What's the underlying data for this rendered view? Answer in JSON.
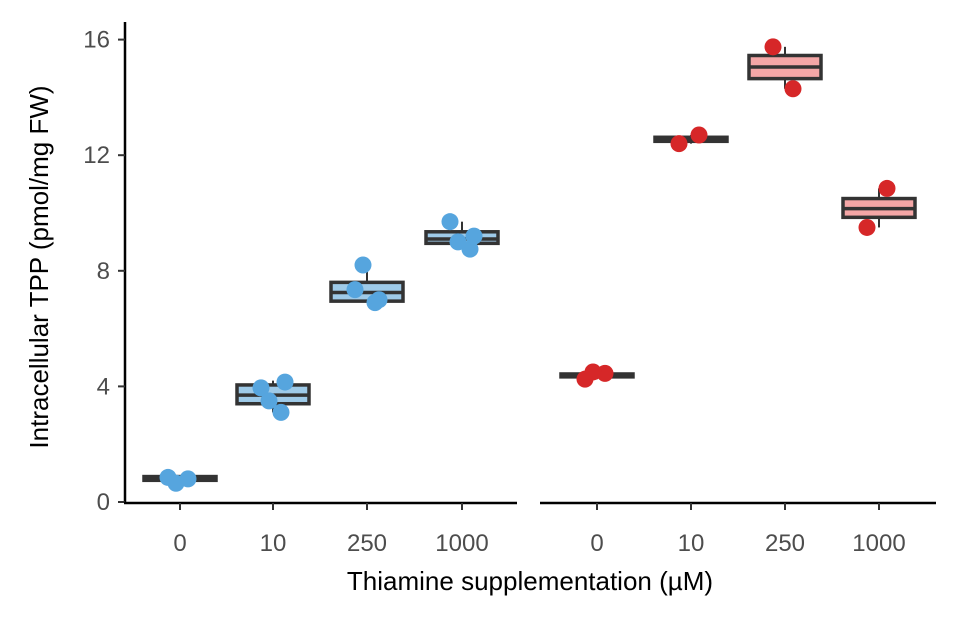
{
  "chart_data": {
    "type": "box",
    "xlabel": "Thiamine supplementation (µM)",
    "ylabel": "Intracellular TPP (pmol/mg FW)",
    "ylim": [
      0,
      16.5
    ],
    "yticks": [
      "0",
      "4",
      "8",
      "12",
      "16"
    ],
    "grid": false,
    "legend": "none",
    "panels": [
      {
        "categories": [
          "0",
          "10",
          "250",
          "1000"
        ],
        "point_color": "#56A5DE",
        "box_fill": "#9ECAE8",
        "series": [
          {
            "category": "0",
            "q1": 0.75,
            "median": 0.82,
            "q3": 0.88,
            "whisker_low": 0.65,
            "whisker_high": 0.92,
            "points": [
              0.85,
              0.8,
              0.65
            ]
          },
          {
            "category": "10",
            "q1": 3.4,
            "median": 3.7,
            "q3": 4.05,
            "whisker_low": 3.1,
            "whisker_high": 4.2,
            "points": [
              3.95,
              3.1,
              3.5,
              4.15
            ]
          },
          {
            "category": "250",
            "q1": 6.95,
            "median": 7.25,
            "q3": 7.6,
            "whisker_low": 6.9,
            "whisker_high": 8.2,
            "points": [
              7.35,
              6.9,
              8.2,
              7.0
            ]
          },
          {
            "category": "1000",
            "q1": 8.95,
            "median": 9.1,
            "q3": 9.35,
            "whisker_low": 8.75,
            "whisker_high": 9.7,
            "points": [
              9.7,
              8.75,
              9.0,
              9.2
            ]
          }
        ]
      },
      {
        "categories": [
          "0",
          "10",
          "250",
          "1000"
        ],
        "point_color": "#D62728",
        "box_fill": "#F4A6A6",
        "series": [
          {
            "category": "0",
            "q1": 4.33,
            "median": 4.38,
            "q3": 4.43,
            "whisker_low": 4.25,
            "whisker_high": 4.5,
            "points": [
              4.25,
              4.45,
              4.5
            ]
          },
          {
            "category": "10",
            "q1": 12.48,
            "median": 12.55,
            "q3": 12.62,
            "whisker_low": 12.4,
            "whisker_high": 12.7,
            "points": [
              12.4,
              12.7
            ]
          },
          {
            "category": "250",
            "q1": 14.65,
            "median": 15.05,
            "q3": 15.45,
            "whisker_low": 14.3,
            "whisker_high": 15.75,
            "points": [
              15.75,
              14.3
            ]
          },
          {
            "category": "1000",
            "q1": 9.85,
            "median": 10.15,
            "q3": 10.5,
            "whisker_low": 9.5,
            "whisker_high": 10.85,
            "points": [
              9.5,
              10.85
            ]
          }
        ]
      }
    ]
  }
}
